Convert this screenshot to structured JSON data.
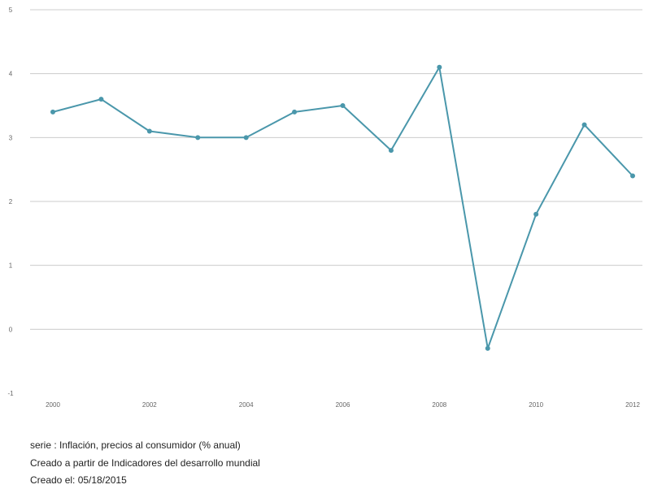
{
  "chart_data": {
    "type": "line",
    "x": [
      2000,
      2001,
      2002,
      2003,
      2004,
      2005,
      2006,
      2007,
      2008,
      2009,
      2010,
      2011,
      2012
    ],
    "series": [
      {
        "values": [
          3.4,
          3.6,
          3.1,
          3.0,
          3.0,
          3.4,
          3.5,
          2.8,
          4.1,
          -0.3,
          1.8,
          3.2,
          2.4
        ]
      }
    ],
    "xticks": [
      "2000",
      "2002",
      "2004",
      "2006",
      "2008",
      "2010",
      "2012"
    ],
    "yticks": [
      "-1",
      "0",
      "1",
      "2",
      "3",
      "4",
      "5"
    ],
    "xlim": [
      2000,
      2012
    ],
    "ylim": [
      -1,
      5
    ],
    "grid": "horizontal",
    "legend": "none",
    "colors": {
      "line": "#4a97ab",
      "grid": "#cccccc",
      "tick_text": "#666666"
    }
  },
  "caption": {
    "series_line": "serie : Inflación, precios al consumidor (% anual)",
    "source_line": "Creado a partir de Indicadores del desarrollo mundial",
    "date_line": "Creado el: 05/18/2015"
  }
}
